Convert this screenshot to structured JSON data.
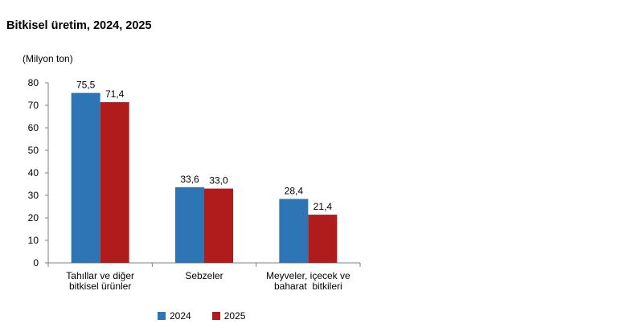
{
  "chart_data": {
    "type": "bar",
    "title": "Bitkisel üretim, 2024, 2025",
    "ylabel": "(Milyon ton)",
    "xlabel": "",
    "categories": [
      [
        "Tahıllar ve diğer",
        "bitkisel ürünler"
      ],
      [
        "Sebzeler"
      ],
      [
        "Meyveler, içecek ve",
        "baharat  bitkileri"
      ]
    ],
    "series": [
      {
        "name": "2024",
        "color": "#2E75B6",
        "values": [
          75.5,
          33.6,
          28.4
        ],
        "labels": [
          "75,5",
          "33,6",
          "28,4"
        ]
      },
      {
        "name": "2025",
        "color": "#B01C1C",
        "values": [
          71.4,
          33.0,
          21.4
        ],
        "labels": [
          "71,4",
          "33,0",
          "21,4"
        ]
      }
    ],
    "ylim": [
      0,
      80
    ],
    "yticks": [
      0,
      10,
      20,
      30,
      40,
      50,
      60,
      70,
      80
    ],
    "grid": false,
    "legend": "bottom"
  }
}
